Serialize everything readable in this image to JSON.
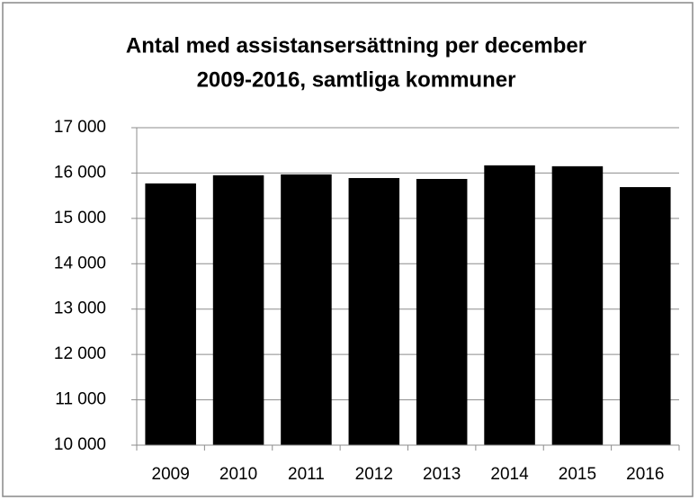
{
  "chart_data": {
    "type": "bar",
    "title": [
      "Antal med assistansersättning per december",
      "2009-2016, samtliga kommuner"
    ],
    "categories": [
      "2009",
      "2010",
      "2011",
      "2012",
      "2013",
      "2014",
      "2015",
      "2016"
    ],
    "values": [
      15770,
      15950,
      15970,
      15890,
      15870,
      16170,
      16150,
      15690
    ],
    "color": "#000000",
    "ylim": [
      10000,
      17000
    ],
    "yticks": [
      {
        "value": 10000,
        "label": "10 000"
      },
      {
        "value": 11000,
        "label": "11 000"
      },
      {
        "value": 12000,
        "label": "12 000"
      },
      {
        "value": 13000,
        "label": "13 000"
      },
      {
        "value": 14000,
        "label": "14 000"
      },
      {
        "value": 15000,
        "label": "15 000"
      },
      {
        "value": 16000,
        "label": "16 000"
      },
      {
        "value": 17000,
        "label": "17 000"
      }
    ],
    "grid": true
  }
}
